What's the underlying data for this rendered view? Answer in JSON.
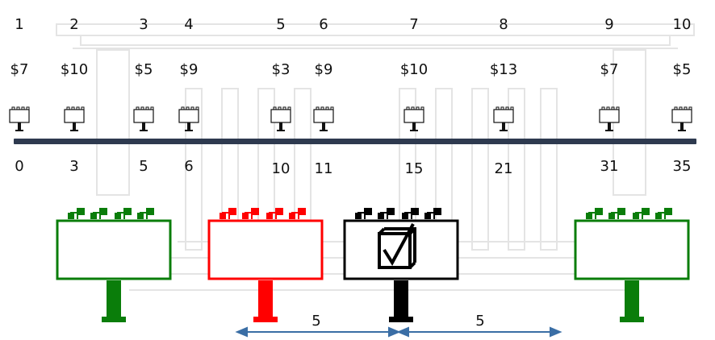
{
  "billboards": [
    {
      "index": "1",
      "price": "$7",
      "position": "0"
    },
    {
      "index": "2",
      "price": "$10",
      "position": "3"
    },
    {
      "index": "3",
      "price": "$5",
      "position": "5"
    },
    {
      "index": "4",
      "price": "$9",
      "position": "6"
    },
    {
      "index": "5",
      "price": "$3",
      "position": "10"
    },
    {
      "index": "6",
      "price": "$9",
      "position": "11"
    },
    {
      "index": "7",
      "price": "$10",
      "position": "15"
    },
    {
      "index": "8",
      "price": "$13",
      "position": "21"
    },
    {
      "index": "9",
      "price": "$7",
      "position": "31"
    },
    {
      "index": "10",
      "price": "$5",
      "position": "35"
    }
  ],
  "big_billboards": [
    {
      "name": "billboard-allowed-left",
      "color": "#0a7d0a",
      "checked": false
    },
    {
      "name": "billboard-conflict",
      "color": "#ff0000",
      "checked": false
    },
    {
      "name": "billboard-selected",
      "color": "#000000",
      "checked": true
    },
    {
      "name": "billboard-allowed-right",
      "color": "#0a7d0a",
      "checked": false
    }
  ],
  "distance_labels": [
    "5",
    "5"
  ],
  "colors": {
    "road": "#2e3a4f",
    "allowed": "#0a7d0a",
    "conflict": "#ff0000",
    "selected": "#000000",
    "arrow": "#3a6ea5"
  }
}
